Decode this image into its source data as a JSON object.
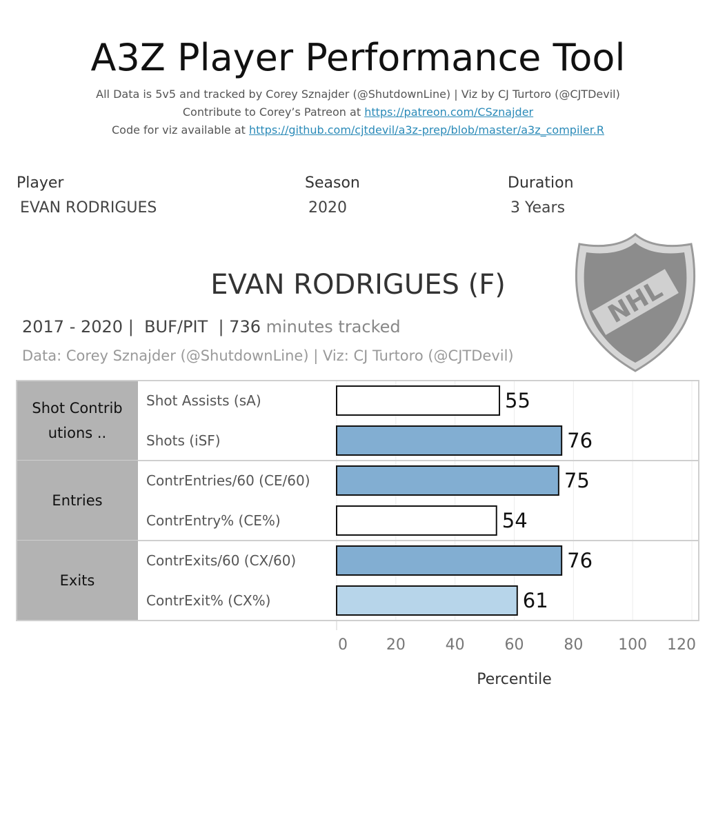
{
  "header": {
    "title": "A3Z Player Performance Tool",
    "line1": "All Data is 5v5 and tracked by Corey Sznajder (@ShutdownLine) | Viz by CJ Turtoro (@CJTDevil)",
    "line2_prefix": "Contribute to Corey’s Patreon at ",
    "line2_link": "https://patreon.com/CSznajder",
    "line3_prefix": "Code for viz available at ",
    "line3_link": "https://github.com/cjtdevil/a3z-prep/blob/master/a3z_compiler.R"
  },
  "filters": {
    "player_label": "Player",
    "player_value": "EVAN RODRIGUES",
    "season_label": "Season",
    "season_value": "2020",
    "duration_label": "Duration",
    "duration_value": "3 Years"
  },
  "player_card": {
    "heading": "EVAN RODRIGUES (F)",
    "years": "2017 - 2020 |",
    "teams": "BUF/PIT",
    "minutes": "| 736",
    "minutes_suffix": " minutes tracked",
    "credit": "Data: Corey Sznajder (@ShutdownLine) | Viz: CJ Turtoro (@CJTDevil)",
    "logo_text": "NHL"
  },
  "chart_data": {
    "type": "bar",
    "orientation": "horizontal",
    "groups": [
      {
        "name": "Shot Contrib utions ..",
        "lines": [
          "Shot Contrib",
          "utions      .."
        ],
        "metrics": [
          "Shot Assists (sA)",
          "Shots (iSF)"
        ]
      },
      {
        "name": "Entries",
        "lines": [
          "Entries"
        ],
        "metrics": [
          "ContrEntries/60 (CE/60)",
          "ContrEntry% (CE%)"
        ]
      },
      {
        "name": "Exits",
        "lines": [
          "Exits"
        ],
        "metrics": [
          "ContrExits/60 (CX/60)",
          "ContrExit% (CX%)"
        ]
      }
    ],
    "categories": [
      "Shot Assists (sA)",
      "Shots (iSF)",
      "ContrEntries/60 (CE/60)",
      "ContrEntry% (CE%)",
      "ContrExits/60 (CX/60)",
      "ContrExit% (CX%)"
    ],
    "values": [
      55,
      76,
      75,
      54,
      76,
      61
    ],
    "bar_colors": [
      "#ffffff",
      "#82aed2",
      "#82aed2",
      "#ffffff",
      "#82aed2",
      "#b7d5ea"
    ],
    "xlabel": "Percentile",
    "xlim": [
      0,
      120
    ],
    "xticks": [
      0,
      20,
      40,
      60,
      80,
      100,
      120
    ],
    "grid": true
  }
}
